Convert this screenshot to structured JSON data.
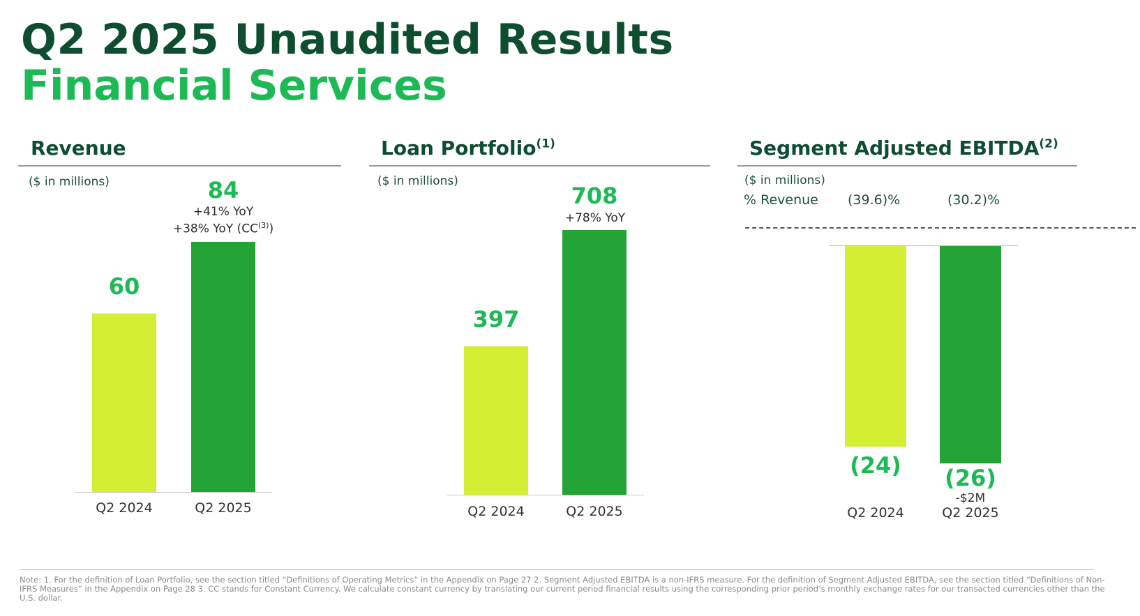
{
  "header": {
    "title": "Q2 2025 Unaudited Results",
    "subtitle": "Financial Services"
  },
  "colors": {
    "dark_green": "#0e4d2f",
    "accent_green": "#1db954",
    "bar_prior": "#d4ee34",
    "bar_current": "#24a337"
  },
  "chart_data": [
    {
      "type": "bar",
      "title": "Revenue",
      "unit": "($ in millions)",
      "categories": [
        "Q2 2024",
        "Q2 2025"
      ],
      "values": [
        60,
        84
      ],
      "value_labels": [
        "60",
        "84"
      ],
      "annotations": {
        "yoy": "+41% YoY",
        "yoy_cc_prefix": "+38% YoY (CC",
        "yoy_cc_sup": "(3)",
        "yoy_cc_suffix": ")"
      }
    },
    {
      "type": "bar",
      "title": "Loan Portfolio",
      "title_sup": "(1)",
      "unit": "($ in millions)",
      "categories": [
        "Q2 2024",
        "Q2 2025"
      ],
      "values": [
        397,
        708
      ],
      "value_labels": [
        "397",
        "708"
      ],
      "annotations": {
        "yoy": "+78% YoY"
      }
    },
    {
      "type": "bar",
      "title": "Segment Adjusted EBITDA",
      "title_sup": "(2)",
      "unit": "($ in millions)",
      "categories": [
        "Q2 2024",
        "Q2 2025"
      ],
      "values": [
        -24,
        -26
      ],
      "value_labels": [
        "(24)",
        "(26)"
      ],
      "pct_revenue": {
        "label": "% Revenue",
        "values": [
          "(39.6)%",
          "(30.2)%"
        ]
      },
      "annotations": {
        "change": "-$2M"
      }
    }
  ],
  "footnote": "Note: 1. For the definition of Loan Portfolio, see the section titled “Definitions of Operating Metrics” in the Appendix on Page 27 2. Segment Adjusted EBITDA is a non-IFRS measure. For the definition of Segment Adjusted EBITDA, see the section titled “Definitions of Non-IFRS Measures” in the Appendix on Page 28 3. CC stands for Constant Currency. We calculate constant currency by translating our current period financial results using the corresponding prior period’s monthly exchange rates for our transacted currencies other than the U.S. dollar."
}
